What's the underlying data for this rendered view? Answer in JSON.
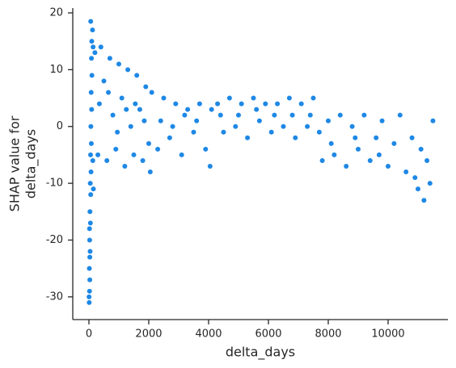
{
  "chart_data": {
    "type": "scatter",
    "x_label": "delta_days",
    "y_label": [
      "SHAP value for",
      "delta_days"
    ],
    "color": "#1e88e5",
    "x": [
      10,
      20,
      30,
      15,
      40,
      25,
      50,
      35,
      60,
      45,
      70,
      55,
      80,
      65,
      90,
      75,
      100,
      85,
      95,
      60,
      120,
      140,
      130,
      150,
      5,
      30,
      20,
      200,
      300,
      400,
      500,
      600,
      700,
      800,
      900,
      1000,
      1100,
      1200,
      1300,
      1400,
      1500,
      1600,
      1700,
      1800,
      1900,
      2000,
      2050,
      350,
      650,
      950,
      1250,
      1550,
      1850,
      2100,
      2300,
      2500,
      2700,
      2900,
      3100,
      3300,
      3500,
      3700,
      3900,
      4050,
      4100,
      2400,
      2800,
      3200,
      3600,
      4300,
      4500,
      4700,
      4900,
      5100,
      5300,
      5500,
      5700,
      5900,
      6100,
      6300,
      6500,
      6700,
      6900,
      7100,
      7300,
      7500,
      7700,
      4400,
      5000,
      5600,
      6200,
      6800,
      7400,
      7800,
      8000,
      8200,
      8400,
      8600,
      8800,
      9000,
      9200,
      9400,
      9600,
      9800,
      10000,
      10200,
      10400,
      10600,
      10800,
      11000,
      11200,
      11400,
      11500,
      11300,
      11100,
      10900,
      8100,
      8900,
      9700
    ],
    "values": [
      -31,
      -29,
      -27,
      -25,
      -22,
      -20,
      -17,
      -15,
      -12,
      -10,
      -8,
      -5,
      -3,
      0,
      3,
      6,
      9,
      12,
      15,
      18.5,
      17,
      14,
      -6,
      -11,
      -30,
      -23,
      -18,
      13,
      -5,
      14,
      8,
      -6,
      12,
      2,
      -4,
      11,
      5,
      -7,
      10,
      0,
      -5,
      9,
      3,
      -6,
      7,
      -3,
      -8,
      4,
      6,
      -1,
      3,
      4,
      1,
      6,
      -4,
      5,
      -2,
      4,
      -5,
      3,
      -1,
      4,
      -4,
      -7,
      3,
      1,
      0,
      2,
      1,
      4,
      -1,
      5,
      0,
      4,
      -2,
      5,
      1,
      4,
      -1,
      4,
      0,
      5,
      -2,
      4,
      0,
      5,
      -1,
      2,
      2,
      3,
      2,
      2,
      2,
      -6,
      1,
      -5,
      2,
      -7,
      0,
      -4,
      2,
      -6,
      -2,
      1,
      -7,
      -3,
      2,
      -8,
      -2,
      -11,
      -13,
      -10,
      1,
      -6,
      -4,
      -9,
      -3,
      -2,
      -5
    ],
    "xlim": [
      -540,
      12000
    ],
    "ylim": [
      -34,
      20.85
    ],
    "xticks": [
      0,
      2000,
      4000,
      6000,
      8000,
      10000
    ],
    "yticks": [
      -30,
      -20,
      -10,
      0,
      10,
      20
    ]
  }
}
